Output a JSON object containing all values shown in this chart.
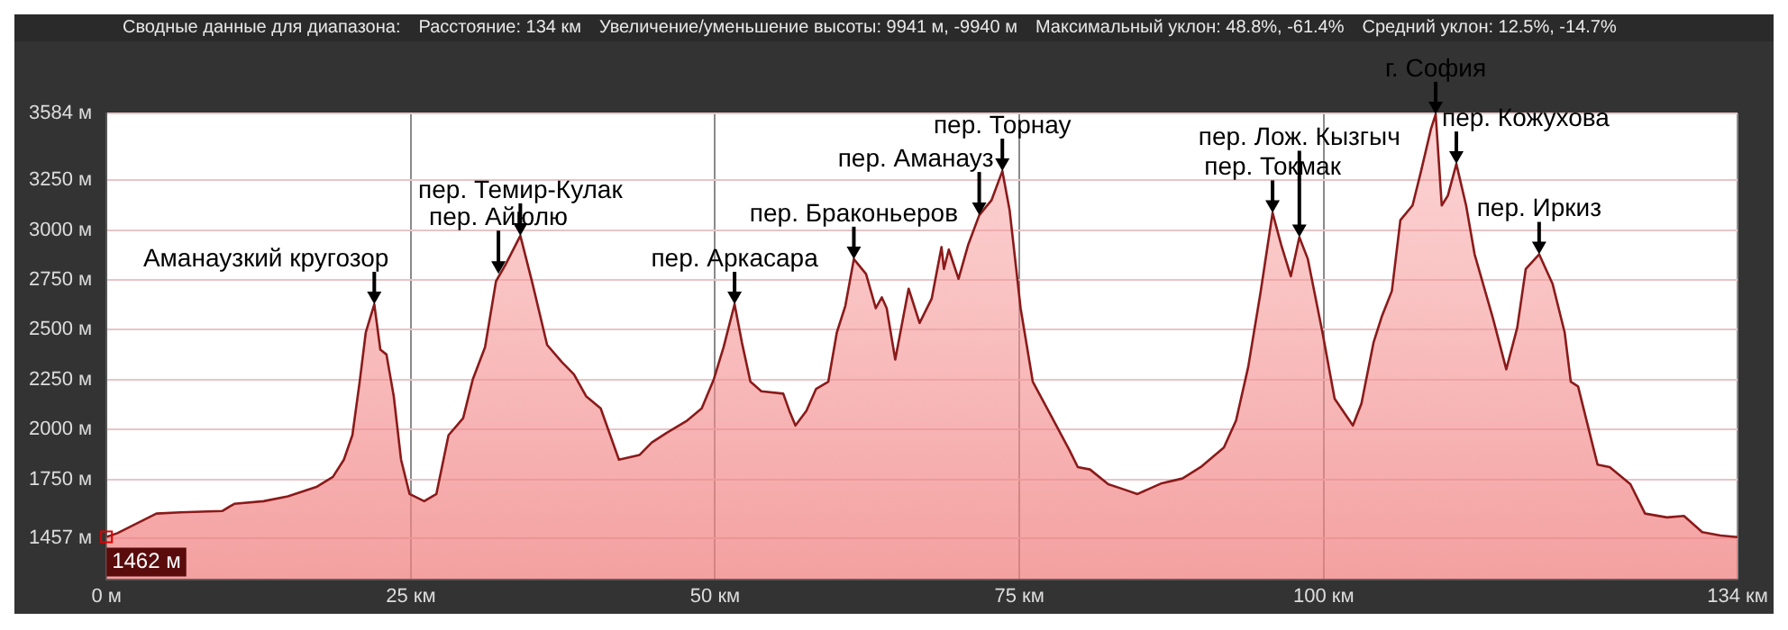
{
  "chart_data": {
    "type": "area",
    "title": "Сводные данные для диапазона:",
    "annotations": [
      "Расстояние: 134 км",
      "Увеличение/уменьшение высоты: 9941 м, -9940 м",
      "Максимальный уклон: 48.8%, -61.4%",
      "Средний уклон: 12.5%, -14.7%",
      {
        "text": "1462 м",
        "x": 0,
        "y": 1462
      },
      {
        "text": "Аманаузкий кругозор",
        "x": 22.0,
        "y": 2628
      },
      {
        "text": "пер. Айюлю",
        "x": 32.2,
        "y": 2780
      },
      {
        "text": "пер. Темир-Кулак",
        "x": 34.0,
        "y": 2971
      },
      {
        "text": "пер. Аркасара",
        "x": 51.6,
        "y": 2628
      },
      {
        "text": "пер. Браконьеров",
        "x": 61.4,
        "y": 2854
      },
      {
        "text": "пер. Аманауз",
        "x": 71.7,
        "y": 3074
      },
      {
        "text": "пер. Торнау",
        "x": 73.6,
        "y": 3295
      },
      {
        "text": "пер. Токмак",
        "x": 95.8,
        "y": 3086
      },
      {
        "text": "пер. Лож. Кызгыч",
        "x": 98.0,
        "y": 2964
      },
      {
        "text": "г. София",
        "x": 109.2,
        "y": 3580
      },
      {
        "text": "пер. Кожухова",
        "x": 110.9,
        "y": 3331
      },
      {
        "text": "пер. Иркиз",
        "x": 117.7,
        "y": 2878
      }
    ],
    "x": [
      0,
      0.9,
      4.1,
      6.1,
      9.5,
      10.5,
      12.9,
      14.9,
      17.3,
      18.6,
      19.5,
      20.2,
      20.8,
      21.3,
      22.0,
      22.5,
      23.0,
      23.6,
      24.2,
      24.9,
      26.1,
      27.1,
      28.1,
      29.3,
      30.1,
      31.1,
      32.0,
      32.8,
      34.0,
      35.0,
      36.2,
      37.4,
      38.4,
      39.4,
      40.6,
      42.1,
      43.8,
      44.8,
      46.0,
      47.7,
      48.9,
      49.9,
      50.7,
      51.6,
      52.2,
      52.9,
      53.8,
      55.6,
      56.1,
      56.6,
      57.5,
      58.3,
      59.3,
      60.0,
      60.7,
      61.4,
      62.4,
      63.2,
      63.7,
      64.1,
      64.8,
      65.9,
      66.8,
      67.8,
      68.6,
      68.8,
      69.2,
      70.0,
      70.8,
      71.7,
      72.7,
      73.6,
      74.2,
      75.1,
      76.1,
      77.6,
      79.1,
      79.8,
      80.8,
      82.3,
      83.5,
      84.7,
      86.7,
      88.4,
      89.9,
      91.8,
      92.8,
      93.8,
      94.8,
      95.8,
      96.5,
      97.3,
      98.0,
      98.7,
      99.9,
      100.9,
      102.4,
      103.1,
      104.1,
      104.8,
      105.6,
      106.3,
      107.3,
      108.0,
      108.8,
      109.2,
      109.7,
      110.2,
      110.9,
      111.7,
      112.4,
      113.9,
      115.0,
      115.9,
      116.6,
      117.7,
      118.8,
      119.8,
      120.3,
      120.9,
      122.5,
      123.5,
      125.2,
      126.4,
      128.2,
      129.6,
      131.1,
      132.6,
      134.0
    ],
    "series": [
      {
        "color": "#8b1a1a",
        "values": [
          1462,
          1481,
          1579,
          1585,
          1592,
          1628,
          1641,
          1665,
          1714,
          1763,
          1849,
          1972,
          2240,
          2486,
          2628,
          2400,
          2376,
          2167,
          1849,
          1677,
          1641,
          1677,
          1972,
          2057,
          2253,
          2413,
          2743,
          2828,
          2971,
          2731,
          2424,
          2339,
          2277,
          2167,
          2106,
          1849,
          1873,
          1935,
          1983,
          2045,
          2106,
          2253,
          2413,
          2628,
          2437,
          2240,
          2192,
          2180,
          2094,
          2020,
          2094,
          2204,
          2240,
          2486,
          2620,
          2854,
          2780,
          2608,
          2662,
          2608,
          2351,
          2706,
          2534,
          2657,
          2914,
          2804,
          2902,
          2755,
          2927,
          3074,
          3148,
          3295,
          3098,
          2608,
          2240,
          2069,
          1898,
          1812,
          1800,
          1726,
          1702,
          1677,
          1731,
          1755,
          1812,
          1910,
          2045,
          2314,
          2682,
          3086,
          2927,
          2768,
          2964,
          2854,
          2486,
          2155,
          2020,
          2130,
          2437,
          2571,
          2694,
          3049,
          3123,
          3295,
          3503,
          3580,
          3123,
          3172,
          3331,
          3123,
          2878,
          2559,
          2302,
          2510,
          2804,
          2878,
          2731,
          2486,
          2240,
          2216,
          1824,
          1812,
          1726,
          1579,
          1560,
          1567,
          1486,
          1469,
          1461
        ]
      }
    ],
    "xlim": [
      0,
      134
    ],
    "xticks": [
      {
        "value": 0,
        "label": "0 м"
      },
      {
        "value": 25,
        "label": "25 км"
      },
      {
        "value": 50,
        "label": "50 км"
      },
      {
        "value": 75,
        "label": "75 км"
      },
      {
        "value": 100,
        "label": "100 км"
      },
      {
        "value": 134,
        "label": "134 км"
      }
    ],
    "ylim": [
      1250,
      3584
    ],
    "yticks": [
      {
        "value": 1457,
        "label": "1457 м"
      },
      {
        "value": 1750,
        "label": "1750 м"
      },
      {
        "value": 2000,
        "label": "2000 м"
      },
      {
        "value": 2250,
        "label": "2250 м"
      },
      {
        "value": 2500,
        "label": "2500 м"
      },
      {
        "value": 2750,
        "label": "2750 м"
      },
      {
        "value": 3000,
        "label": "3000 м"
      },
      {
        "value": 3250,
        "label": "3250 м"
      },
      {
        "value": 3584,
        "label": "3584 м"
      }
    ],
    "grid": true
  }
}
